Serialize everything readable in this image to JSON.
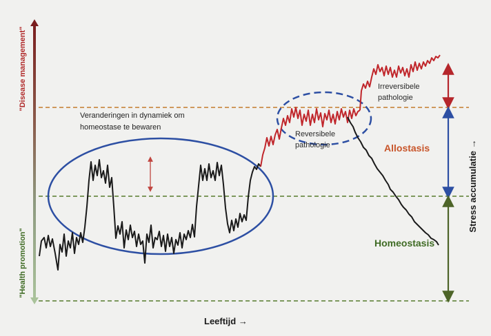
{
  "diagram": {
    "left_axis_top_label": "\"Disease management\"",
    "left_axis_bottom_label": "\"Health promotion\"",
    "x_axis_label": "Leeftijd →",
    "right_axis_label": "Stress accumulatie →",
    "annotation_dynamics_line1": "Veranderingen in dynamiek om",
    "annotation_dynamics_line2": "homeostase te bewaren",
    "reversible_line1": "Reversibele",
    "reversible_line2": "pathologie",
    "irreversible_line1": "Irreversibele",
    "irreversible_line2": "pathologie",
    "zone_allostasis": "Allostasis",
    "zone_homeostasis": "Homeostasis"
  },
  "colors": {
    "background": "#f1f1ef",
    "signal_black": "#1a1a1a",
    "signal_red": "#c0262b",
    "allostasis_text": "#c8552a",
    "homeostasis_text": "#3f6b24",
    "orange_dash": "#c47a2c",
    "green_dash": "#567a2c",
    "blue_ellipse": "#2d4fa3",
    "arrow_red": "#b5262b",
    "arrow_blue": "#2d4fa3",
    "arrow_green": "#4d6428"
  }
}
